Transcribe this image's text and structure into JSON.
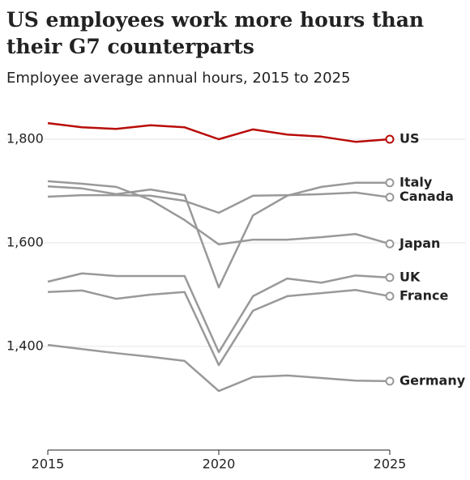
{
  "chart_data": {
    "type": "line",
    "title": "US employees work more hours than their G7 counterparts",
    "subtitle": "Employee average annual hours, 2015 to 2025",
    "x": [
      2015,
      2016,
      2017,
      2018,
      2019,
      2020,
      2021,
      2022,
      2023,
      2024,
      2025
    ],
    "xlim": [
      2015,
      2025
    ],
    "xticks": [
      2015,
      2020,
      2025
    ],
    "ylim": [
      1200,
      1850
    ],
    "yticks": [
      {
        "value": 1400,
        "label": "1,400"
      },
      {
        "value": 1600,
        "label": "1,600"
      },
      {
        "value": 1800,
        "label": "1,800"
      }
    ],
    "grid": true,
    "series": [
      {
        "name": "Germany",
        "color": "#999999",
        "values": [
          1403,
          1395,
          1387,
          1380,
          1372,
          1314,
          1341,
          1344,
          1339,
          1334,
          1333
        ]
      },
      {
        "name": "France",
        "color": "#999999",
        "values": [
          1505,
          1508,
          1492,
          1500,
          1505,
          1364,
          1469,
          1497,
          1503,
          1509,
          1497
        ]
      },
      {
        "name": "UK",
        "color": "#999999",
        "values": [
          1525,
          1541,
          1536,
          1536,
          1536,
          1389,
          1497,
          1531,
          1523,
          1537,
          1533
        ]
      },
      {
        "name": "Japan",
        "color": "#999999",
        "values": [
          1719,
          1714,
          1708,
          1683,
          1644,
          1597,
          1606,
          1606,
          1611,
          1617,
          1598
        ]
      },
      {
        "name": "Canada",
        "color": "#999999",
        "values": [
          1689,
          1692,
          1692,
          1691,
          1681,
          1658,
          1691,
          1692,
          1694,
          1697,
          1688
        ]
      },
      {
        "name": "Italy",
        "color": "#999999",
        "values": [
          1709,
          1705,
          1694,
          1703,
          1692,
          1514,
          1653,
          1691,
          1708,
          1716,
          1716
        ]
      },
      {
        "name": "US",
        "color": "#b80c09",
        "values": [
          1831,
          1823,
          1820,
          1827,
          1823,
          1800,
          1819,
          1809,
          1805,
          1795,
          1800
        ]
      }
    ]
  }
}
